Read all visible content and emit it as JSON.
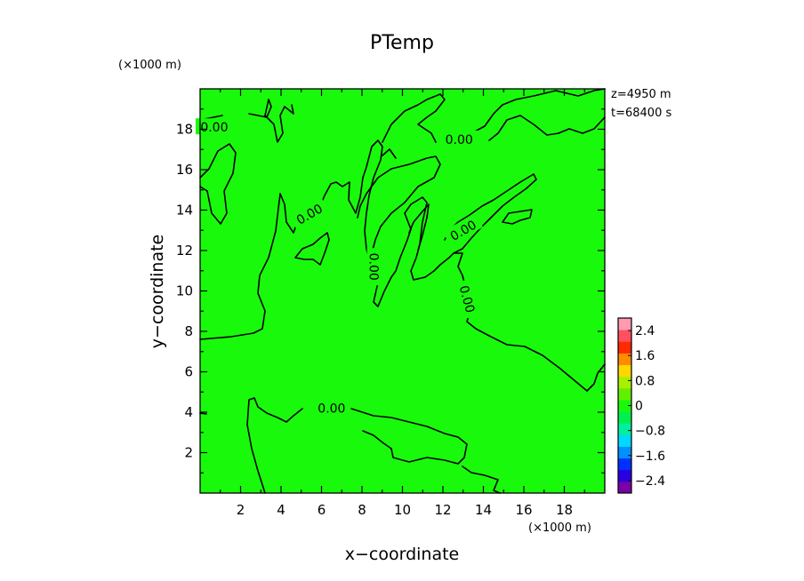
{
  "chart_data": {
    "type": "heatmap",
    "title": "PTemp",
    "xlabel": "x−coordinate",
    "ylabel": "y−coordinate",
    "x_unit": "(×1000 m)",
    "y_unit": "(×1000 m)",
    "annotations": [
      "z=4950  m",
      "t=68400  s"
    ],
    "xlim": [
      0,
      20
    ],
    "ylim": [
      0,
      20
    ],
    "x_ticks": [
      2,
      4,
      6,
      8,
      10,
      12,
      14,
      16,
      18
    ],
    "y_ticks": [
      2,
      4,
      6,
      8,
      10,
      12,
      14,
      16,
      18
    ],
    "x_tick_labels": [
      "2",
      "4",
      "6",
      "8",
      "10",
      "12",
      "14",
      "16",
      "18"
    ],
    "y_tick_labels": [
      "2",
      "4",
      "6",
      "8",
      "10",
      "12",
      "14",
      "16",
      "18"
    ],
    "field_color_light": "#19f90c",
    "field_color_dark": "#17ec08",
    "contour_level": 0.0,
    "contour_labels": [
      {
        "text": "0.00",
        "x": 0.7,
        "y": 18.1
      },
      {
        "text": "0.00",
        "x": 12.8,
        "y": 17.5
      },
      {
        "text": "0.00",
        "x": 5.4,
        "y": 13.8
      },
      {
        "text": "0.00",
        "x": 13.0,
        "y": 13.0
      },
      {
        "text": "0.00",
        "x": 8.6,
        "y": 11.2
      },
      {
        "text": "0.00",
        "x": 13.2,
        "y": 9.6
      },
      {
        "text": "0.00",
        "x": 6.5,
        "y": 4.2
      }
    ],
    "colorbar": {
      "ticks": [
        "2.4",
        "1.6",
        "0.8",
        "0",
        "−0.8",
        "−1.6",
        "−2.4"
      ],
      "range": [
        -2.8,
        2.8
      ],
      "colors": [
        "#7a00a8",
        "#2a00e0",
        "#0030ff",
        "#0090ff",
        "#00d8ff",
        "#00f0a0",
        "#00f050",
        "#19f90c",
        "#60f000",
        "#a8f000",
        "#ffd800",
        "#ff8c00",
        "#ff2a00",
        "#ff5060",
        "#ff9ab0"
      ]
    }
  }
}
